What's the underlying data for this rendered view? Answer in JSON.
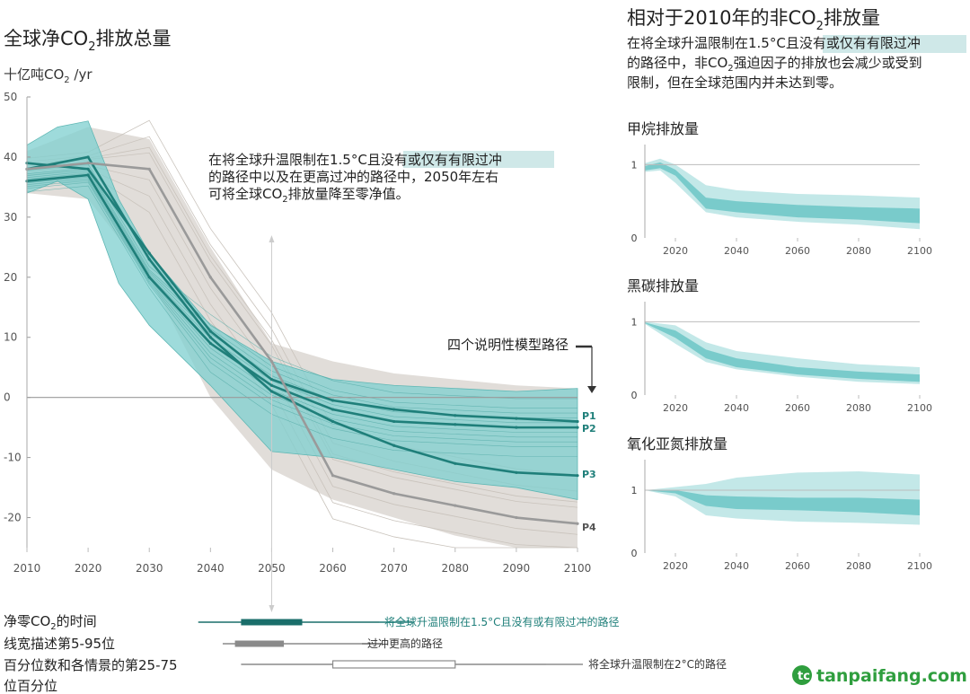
{
  "main": {
    "title": "全球净CO",
    "title_sub": "2",
    "title_tail": "排放总量",
    "unit_pre": "十亿吨CO",
    "unit_sub": "2",
    "unit_tail": " /yr",
    "annotation_lines": [
      {
        "pre": "在将全球升温限制在1.5°C且",
        "hl": "没有或仅有有限过冲",
        "post": ""
      },
      {
        "pre": "的路径中以及在更高过冲的路径中，2050年左右",
        "hl": "",
        "post": ""
      },
      {
        "pre": "可将全球CO",
        "sub": "2",
        "post": "排放量降至零净值。"
      }
    ],
    "pathways_label": "四个说明性模型路径",
    "pathway_names": [
      "P1",
      "P2",
      "P3",
      "P4"
    ]
  },
  "right": {
    "title_pre": "相对于2010年的非CO",
    "title_sub": "2",
    "title_tail": "排放量",
    "desc_lines": [
      {
        "pre": "在将全球升温限制在1.5°C且",
        "hl": "没有或仅有有限过冲"
      },
      {
        "pre": "的路径中，非CO",
        "sub": "2",
        "post": "强迫因子的排放也会减少或受到"
      },
      {
        "pre": "限制，但在全球范围内并未达到零。"
      }
    ],
    "panel_titles": [
      "甲烷排放量",
      "黑碳排放量",
      "氧化亚氮排放量"
    ]
  },
  "netzero": {
    "title_pre": "净零CO",
    "title_sub": "2",
    "title_tail": "的时间",
    "desc_lines": [
      "线宽描述第5-95位",
      "百分位数和各情景的第25-75",
      "位百分位"
    ],
    "bars": [
      {
        "label": "将全球升温限制在1.5°C且没有或有限过冲的路径",
        "color": "#1a6e6a",
        "p5": 2038,
        "p25": 2045,
        "p75": 2055,
        "p95": 2073
      },
      {
        "label": "过冲更高的路径",
        "color": "#8a8a8a",
        "p5": 2042,
        "p25": 2044,
        "p75": 2052,
        "p95": 2068
      },
      {
        "label": "将全球升温限制在2°C的路径",
        "color": "#8a8a8a",
        "p5": 2045,
        "p25": 2060,
        "p75": 2080,
        "p95": 2095
      }
    ]
  },
  "watermark": "tanpaifang.com",
  "colors": {
    "teal": "#7ecfcf",
    "teal_dark": "#1f7f7a",
    "grey": "#d7d2cc",
    "p4": "#9a9a9a",
    "band": "#a9dede",
    "band_dark": "#6cc6c6"
  },
  "chart_data": [
    {
      "type": "line",
      "title": "全球净CO2排放总量",
      "ylabel": "十亿吨CO2 /yr",
      "x": [
        2010,
        2020,
        2030,
        2040,
        2050,
        2060,
        2070,
        2080,
        2090,
        2100
      ],
      "xlim": [
        2010,
        2100
      ],
      "ylim": [
        -25,
        50
      ],
      "yticks": [
        50,
        40,
        30,
        20,
        10,
        0,
        -10,
        -20
      ],
      "grid": false,
      "series": [
        {
          "name": "P1",
          "x": [
            2010,
            2020,
            2030,
            2040,
            2050,
            2060,
            2070,
            2080,
            2090,
            2100
          ],
          "values": [
            39,
            38,
            24,
            11,
            3,
            -0.5,
            -2,
            -3,
            -3.5,
            -4
          ]
        },
        {
          "name": "P2",
          "x": [
            2010,
            2020,
            2030,
            2040,
            2050,
            2060,
            2070,
            2080,
            2090,
            2100
          ],
          "values": [
            36,
            37,
            20,
            9,
            2,
            -2,
            -4,
            -4.5,
            -5,
            -5
          ]
        },
        {
          "name": "P3",
          "x": [
            2010,
            2020,
            2030,
            2040,
            2050,
            2060,
            2070,
            2080,
            2090,
            2100
          ],
          "values": [
            38,
            40,
            23,
            10,
            1,
            -4,
            -8,
            -11,
            -12.5,
            -13
          ]
        },
        {
          "name": "P4",
          "x": [
            2010,
            2020,
            2030,
            2040,
            2050,
            2060,
            2070,
            2080,
            2090,
            2100
          ],
          "values": [
            38,
            39,
            38,
            20,
            6,
            -13,
            -16,
            -18,
            -20,
            -21
          ]
        }
      ],
      "bands": [
        {
          "x": [
            2010,
            2015,
            2020,
            2025,
            2030,
            2040,
            2050,
            2060,
            2070,
            2080,
            2090,
            2100
          ],
          "lower": [
            34,
            36,
            33,
            19,
            12,
            2,
            -9,
            -10,
            -12,
            -14,
            -15,
            -17
          ],
          "upper": [
            42,
            45,
            46,
            33,
            24,
            12,
            6,
            3,
            2,
            1.5,
            1,
            1.5
          ]
        },
        {
          "x": [
            2010,
            2020,
            2030,
            2040,
            2050,
            2060,
            2070,
            2080,
            2090,
            2100
          ],
          "lower": [
            34,
            33,
            20,
            0,
            -12,
            -17,
            -20,
            -23,
            -25,
            -25
          ],
          "upper": [
            41,
            45,
            43,
            25,
            9,
            6,
            4,
            3,
            2,
            1.5
          ]
        }
      ]
    },
    {
      "type": "area",
      "title": "甲烷排放量",
      "x": [
        2010,
        2015,
        2020,
        2030,
        2040,
        2060,
        2080,
        2100
      ],
      "outer_lower": [
        0.9,
        0.92,
        0.75,
        0.35,
        0.28,
        0.22,
        0.18,
        0.12
      ],
      "outer_upper": [
        1.02,
        1.08,
        1.0,
        0.72,
        0.65,
        0.6,
        0.58,
        0.55
      ],
      "inner_lower": [
        0.92,
        0.95,
        0.85,
        0.4,
        0.35,
        0.28,
        0.25,
        0.2
      ],
      "inner_upper": [
        0.98,
        1.03,
        0.93,
        0.55,
        0.5,
        0.45,
        0.42,
        0.4
      ],
      "ylim": [
        0,
        1.2
      ],
      "yticks": [
        0,
        1
      ],
      "xticks": [
        2020,
        2040,
        2060,
        2080,
        2100
      ]
    },
    {
      "type": "area",
      "title": "黑碳排放量",
      "x": [
        2010,
        2020,
        2030,
        2040,
        2060,
        2080,
        2100
      ],
      "outer_lower": [
        0.97,
        0.7,
        0.45,
        0.35,
        0.25,
        0.18,
        0.15
      ],
      "outer_upper": [
        1.0,
        0.95,
        0.72,
        0.6,
        0.5,
        0.42,
        0.38
      ],
      "inner_lower": [
        0.98,
        0.78,
        0.5,
        0.38,
        0.28,
        0.22,
        0.18
      ],
      "inner_upper": [
        0.99,
        0.88,
        0.62,
        0.5,
        0.38,
        0.32,
        0.28
      ],
      "ylim": [
        0,
        1.2
      ],
      "yticks": [
        0,
        1
      ],
      "xticks": [
        2020,
        2040,
        2060,
        2080,
        2100
      ]
    },
    {
      "type": "area",
      "title": "氧化亚氮排放量",
      "x": [
        2010,
        2020,
        2030,
        2040,
        2060,
        2080,
        2100
      ],
      "outer_lower": [
        1.0,
        0.9,
        0.6,
        0.55,
        0.5,
        0.48,
        0.45
      ],
      "outer_upper": [
        1.0,
        1.05,
        1.1,
        1.2,
        1.28,
        1.3,
        1.25
      ],
      "inner_lower": [
        1.0,
        0.95,
        0.75,
        0.7,
        0.68,
        0.65,
        0.6
      ],
      "inner_upper": [
        1.0,
        1.0,
        0.92,
        0.9,
        0.88,
        0.88,
        0.85
      ],
      "ylim": [
        0,
        1.4
      ],
      "yticks": [
        0,
        1
      ],
      "xticks": [
        2020,
        2040,
        2060,
        2080,
        2100
      ]
    }
  ]
}
